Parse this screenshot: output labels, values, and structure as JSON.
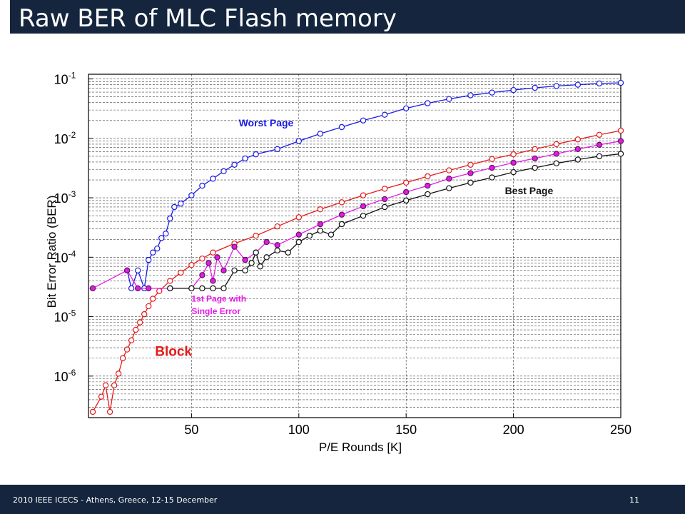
{
  "slide": {
    "title": "Raw BER of MLC Flash memory",
    "footer": "2010 IEEE ICECS - Athens, Greece, 12-15 December",
    "page_number": "11"
  },
  "colors": {
    "bar": "#14253d",
    "worst": "#1a1ae6",
    "block": "#e61a1a",
    "first": "#e619e6",
    "best": "#111111"
  },
  "chart_data": {
    "type": "line",
    "xlabel": "P/E Rounds [K]",
    "ylabel": "Bit Error Ratio (BER)",
    "xlim": [
      2,
      250
    ],
    "ylim": [
      2e-07,
      0.12
    ],
    "yscale": "log",
    "grid": true,
    "x_ticks": [
      50,
      100,
      150,
      200,
      250
    ],
    "y_ticks": [
      {
        "value": 0.1,
        "base": "10",
        "exp": "-1"
      },
      {
        "value": 0.01,
        "base": "10",
        "exp": "-2"
      },
      {
        "value": 0.001,
        "base": "10",
        "exp": "-3"
      },
      {
        "value": 0.0001,
        "base": "10",
        "exp": "-4"
      },
      {
        "value": 1e-05,
        "base": "10",
        "exp": "-5"
      },
      {
        "value": 1e-06,
        "base": "10",
        "exp": "-6"
      }
    ],
    "series": [
      {
        "key": "worst",
        "name": "Worst Page",
        "color": "#1a1ae6",
        "points": [
          [
            20,
            6e-05
          ],
          [
            22,
            3e-05
          ],
          [
            25,
            6e-05
          ],
          [
            28,
            3e-05
          ],
          [
            30,
            9e-05
          ],
          [
            32,
            0.00012
          ],
          [
            34,
            0.00014
          ],
          [
            36,
            0.00021
          ],
          [
            38,
            0.00025
          ],
          [
            40,
            0.00045
          ],
          [
            42,
            0.0007
          ],
          [
            45,
            0.0008
          ],
          [
            50,
            0.0011
          ],
          [
            55,
            0.0016
          ],
          [
            60,
            0.0021
          ],
          [
            65,
            0.0028
          ],
          [
            70,
            0.0036
          ],
          [
            75,
            0.0046
          ],
          [
            80,
            0.0054
          ],
          [
            90,
            0.0066
          ],
          [
            100,
            0.009
          ],
          [
            110,
            0.012
          ],
          [
            120,
            0.0155
          ],
          [
            130,
            0.02
          ],
          [
            140,
            0.025
          ],
          [
            150,
            0.032
          ],
          [
            160,
            0.039
          ],
          [
            170,
            0.046
          ],
          [
            180,
            0.053
          ],
          [
            190,
            0.059
          ],
          [
            200,
            0.065
          ],
          [
            210,
            0.071
          ],
          [
            220,
            0.076
          ],
          [
            230,
            0.08
          ],
          [
            240,
            0.084
          ],
          [
            250,
            0.086
          ]
        ]
      },
      {
        "key": "block",
        "name": "Block",
        "color": "#e61a1a",
        "points": [
          [
            4,
            2.5e-07
          ],
          [
            8,
            4.5e-07
          ],
          [
            10,
            7e-07
          ],
          [
            12,
            2.5e-07
          ],
          [
            14,
            7e-07
          ],
          [
            16,
            1.1e-06
          ],
          [
            18,
            2e-06
          ],
          [
            20,
            2.8e-06
          ],
          [
            22,
            4e-06
          ],
          [
            24,
            6e-06
          ],
          [
            26,
            8e-06
          ],
          [
            28,
            1.1e-05
          ],
          [
            30,
            1.5e-05
          ],
          [
            32,
            2e-05
          ],
          [
            35,
            2.7e-05
          ],
          [
            40,
            4e-05
          ],
          [
            45,
            5.5e-05
          ],
          [
            50,
            7.4e-05
          ],
          [
            55,
            9.5e-05
          ],
          [
            60,
            0.00012
          ],
          [
            70,
            0.00017
          ],
          [
            80,
            0.00023
          ],
          [
            90,
            0.00033
          ],
          [
            100,
            0.00047
          ],
          [
            110,
            0.00064
          ],
          [
            120,
            0.00084
          ],
          [
            130,
            0.0011
          ],
          [
            140,
            0.00142
          ],
          [
            150,
            0.0018
          ],
          [
            160,
            0.0023
          ],
          [
            170,
            0.0029
          ],
          [
            180,
            0.0036
          ],
          [
            190,
            0.0045
          ],
          [
            200,
            0.0054
          ],
          [
            210,
            0.0066
          ],
          [
            220,
            0.008
          ],
          [
            230,
            0.0096
          ],
          [
            240,
            0.0115
          ],
          [
            250,
            0.0135
          ]
        ]
      },
      {
        "key": "first",
        "name": "1st Page with Single Error",
        "color": "#e619e6",
        "points": [
          [
            4,
            3e-05
          ],
          [
            20,
            6e-05
          ],
          [
            25,
            3e-05
          ],
          [
            30,
            3e-05
          ],
          [
            40,
            3e-05
          ],
          [
            50,
            3e-05
          ],
          [
            55,
            5e-05
          ],
          [
            58,
            8e-05
          ],
          [
            60,
            4e-05
          ],
          [
            62,
            0.0001
          ],
          [
            65,
            6e-05
          ],
          [
            70,
            0.00015
          ],
          [
            75,
            9e-05
          ],
          [
            80,
            0.00012
          ],
          [
            85,
            0.00018
          ],
          [
            90,
            0.00016
          ],
          [
            100,
            0.00024
          ],
          [
            110,
            0.00036
          ],
          [
            120,
            0.00052
          ],
          [
            130,
            0.00072
          ],
          [
            140,
            0.00095
          ],
          [
            150,
            0.00125
          ],
          [
            160,
            0.0016
          ],
          [
            170,
            0.0021
          ],
          [
            180,
            0.0026
          ],
          [
            190,
            0.0032
          ],
          [
            200,
            0.0039
          ],
          [
            210,
            0.0046
          ],
          [
            220,
            0.0055
          ],
          [
            230,
            0.0066
          ],
          [
            240,
            0.0078
          ],
          [
            250,
            0.009
          ]
        ]
      },
      {
        "key": "best",
        "name": "Best Page",
        "color": "#111111",
        "points": [
          [
            40,
            3e-05
          ],
          [
            50,
            3e-05
          ],
          [
            55,
            3e-05
          ],
          [
            60,
            3e-05
          ],
          [
            65,
            3e-05
          ],
          [
            70,
            6e-05
          ],
          [
            75,
            6e-05
          ],
          [
            78,
            8e-05
          ],
          [
            80,
            0.00012
          ],
          [
            82,
            7e-05
          ],
          [
            85,
            0.0001
          ],
          [
            90,
            0.00013
          ],
          [
            95,
            0.00012
          ],
          [
            100,
            0.00018
          ],
          [
            105,
            0.00023
          ],
          [
            110,
            0.00028
          ],
          [
            115,
            0.00024
          ],
          [
            120,
            0.00036
          ],
          [
            130,
            0.0005
          ],
          [
            140,
            0.0007
          ],
          [
            150,
            0.0009
          ],
          [
            160,
            0.00115
          ],
          [
            170,
            0.00145
          ],
          [
            180,
            0.0018
          ],
          [
            190,
            0.0022
          ],
          [
            200,
            0.0027
          ],
          [
            210,
            0.0032
          ],
          [
            220,
            0.0038
          ],
          [
            230,
            0.0044
          ],
          [
            240,
            0.005
          ],
          [
            250,
            0.0055
          ]
        ]
      }
    ],
    "annotations": [
      {
        "key": "worst",
        "text": "Worst Page",
        "color": "#1a1ae6"
      },
      {
        "key": "best",
        "text": "Best Page",
        "color": "#111111"
      },
      {
        "key": "first1",
        "text": "1st Page with",
        "color": "#e619e6"
      },
      {
        "key": "first2",
        "text": "Single Error",
        "color": "#e619e6"
      },
      {
        "key": "block",
        "text": "Block",
        "color": "#e61a1a"
      }
    ]
  }
}
